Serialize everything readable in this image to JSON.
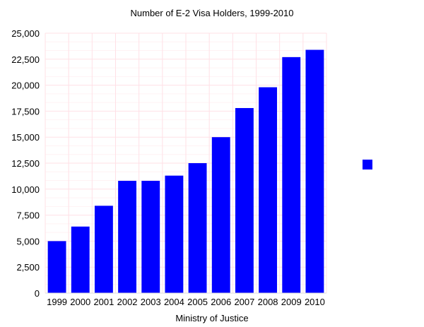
{
  "chart_data": {
    "type": "bar",
    "title": "Number of E-2 Visa Holders, 1999-2010",
    "xlabel": "Ministry of Justice",
    "ylabel": "",
    "categories": [
      "1999",
      "2000",
      "2001",
      "2002",
      "2003",
      "2004",
      "2005",
      "2006",
      "2007",
      "2008",
      "2009",
      "2010"
    ],
    "series": [
      {
        "values": [
          5000,
          6400,
          8400,
          10800,
          10800,
          11300,
          12500,
          15000,
          17800,
          19800,
          22700,
          23400
        ],
        "color": "#0000ff"
      }
    ],
    "ylim": [
      0,
      25000
    ],
    "yticks": [
      "0",
      "2,500",
      "5,000",
      "7,500",
      "10,000",
      "12,500",
      "15,000",
      "17,500",
      "20,000",
      "22,500",
      "25,000"
    ],
    "ytick_values": [
      0,
      2500,
      5000,
      7500,
      10000,
      12500,
      15000,
      17500,
      20000,
      22500,
      25000
    ],
    "grid": true,
    "grid_color": "#ffe0e6",
    "legend_position": "right",
    "bar_color": "#0000ff"
  }
}
